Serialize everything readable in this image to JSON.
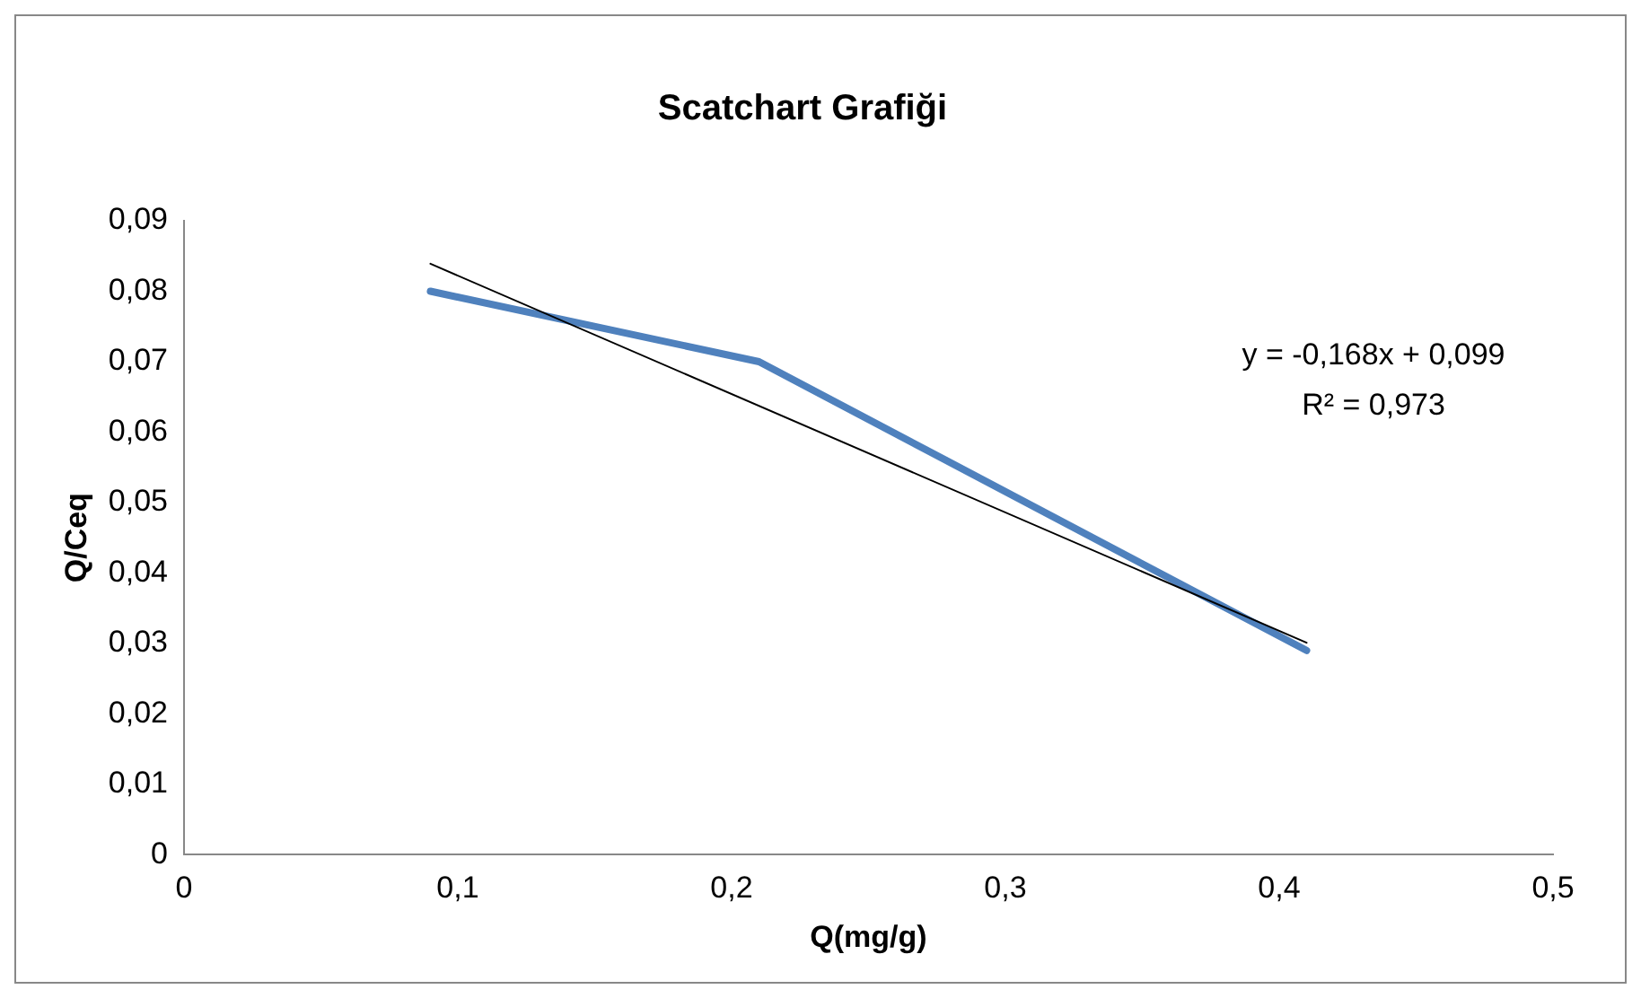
{
  "chart_data": {
    "type": "line",
    "title": "Scatchart Grafiği",
    "xlabel": "Q(mg/g)",
    "ylabel": "Q/Ceq",
    "xlim": [
      0,
      0.5
    ],
    "xticks": [
      0,
      {
        "value": 0.1,
        "label": "0,1"
      },
      {
        "value": 0.2,
        "label": "0,2"
      },
      {
        "value": 0.3,
        "label": "0,3"
      },
      {
        "value": 0.4,
        "label": "0,4"
      },
      {
        "value": 0.5,
        "label": "0,5"
      }
    ],
    "ylim": [
      0,
      0.09
    ],
    "yticks": [
      0,
      {
        "value": 0.01,
        "label": "0,01"
      },
      {
        "value": 0.02,
        "label": "0,02"
      },
      {
        "value": 0.03,
        "label": "0,03"
      },
      {
        "value": 0.04,
        "label": "0,04"
      },
      {
        "value": 0.05,
        "label": "0,05"
      },
      {
        "value": 0.06,
        "label": "0,06"
      },
      {
        "value": 0.07,
        "label": "0,07"
      },
      {
        "value": 0.08,
        "label": "0,08"
      },
      {
        "value": 0.09,
        "label": "0,09"
      }
    ],
    "series": [
      {
        "color": "#4f81bd",
        "x": [
          0.09,
          0.21,
          0.41
        ],
        "values": [
          0.08,
          0.07,
          0.029
        ]
      },
      {
        "type": "line",
        "color": "#000000",
        "x": [
          0.09,
          0.41
        ],
        "values": [
          0.0839,
          0.0301
        ]
      }
    ],
    "annotations": [
      "y = -0,168x + 0,099",
      "R² = 0,973"
    ],
    "grid": false,
    "legend": false,
    "marker": "none",
    "line_style": "solid"
  }
}
